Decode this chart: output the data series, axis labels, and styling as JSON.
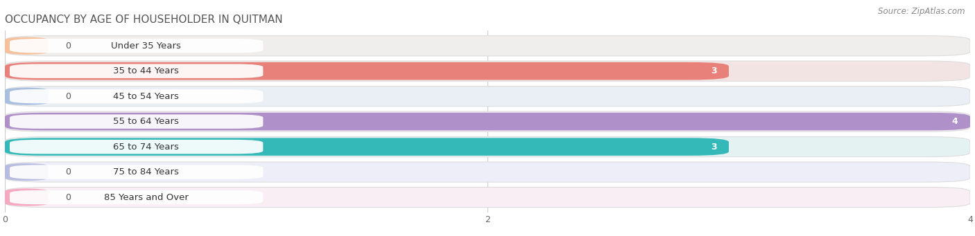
{
  "title": "OCCUPANCY BY AGE OF HOUSEHOLDER IN QUITMAN",
  "source": "Source: ZipAtlas.com",
  "categories": [
    "Under 35 Years",
    "35 to 44 Years",
    "45 to 54 Years",
    "55 to 64 Years",
    "65 to 74 Years",
    "75 to 84 Years",
    "85 Years and Over"
  ],
  "values": [
    0,
    3,
    0,
    4,
    3,
    0,
    0
  ],
  "bar_colors": [
    "#f5c09a",
    "#e8817a",
    "#a8bfe0",
    "#b090c8",
    "#35b8b8",
    "#b8bce0",
    "#f5a8c0"
  ],
  "bg_colors": [
    "#f0eeec",
    "#f2e4e2",
    "#eaeef5",
    "#eee8f2",
    "#e4f2f2",
    "#eeeef8",
    "#f8eef4"
  ],
  "row_border_color": "#dddddd",
  "background_color": "#ffffff",
  "title_fontsize": 11,
  "label_fontsize": 9.5,
  "value_fontsize": 9,
  "source_fontsize": 8.5,
  "xlim": [
    0,
    4
  ],
  "xticks": [
    0,
    2,
    4
  ]
}
